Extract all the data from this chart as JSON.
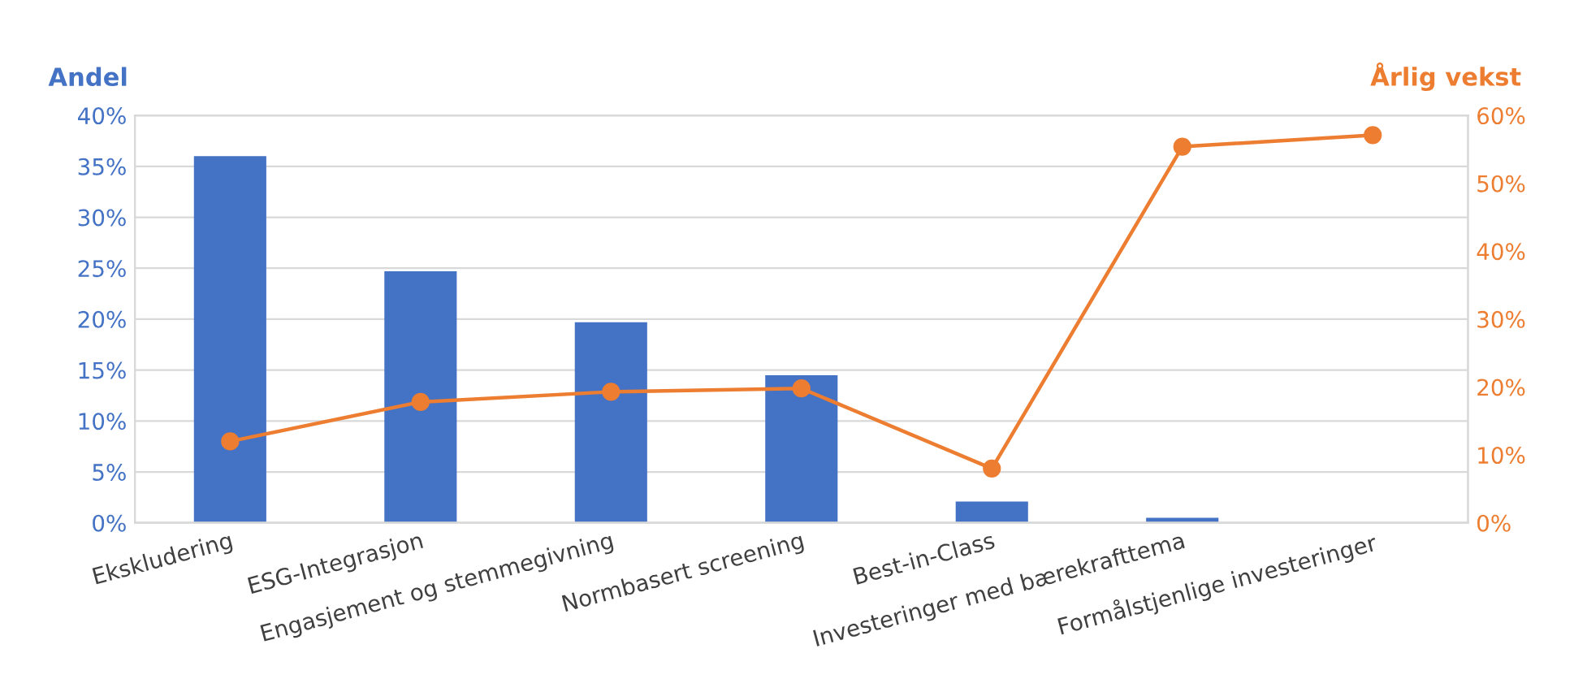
{
  "chart_data": {
    "type": "bar",
    "ylabel": "Andel",
    "y2label": "Årlig vekst",
    "categories": [
      "Ekskludering",
      "ESG-Integrasjon",
      "Engasjement og stemmegivning",
      "Normbasert screening",
      "Best-in-Class",
      "Investeringer med bærekrafttema",
      "Formålstjenlige investeringer"
    ],
    "series": [
      {
        "color": "#4472c4",
        "values": [
          0.36,
          0.247,
          0.197,
          0.145,
          0.021,
          0.005,
          0.0
        ]
      },
      {
        "type": "line",
        "axis": "y2",
        "color": "#ed7d31",
        "marker": "circle",
        "values": [
          0.12,
          0.178,
          0.193,
          0.198,
          0.08,
          0.554,
          0.571
        ]
      }
    ],
    "ylim": [
      0,
      0.4
    ],
    "yticks": [
      {
        "value": 0,
        "label": "0%"
      },
      {
        "value": 0.05,
        "label": "5%"
      },
      {
        "value": 0.1,
        "label": "10%"
      },
      {
        "value": 0.15,
        "label": "15%"
      },
      {
        "value": 0.2,
        "label": "20%"
      },
      {
        "value": 0.25,
        "label": "25%"
      },
      {
        "value": 0.3,
        "label": "30%"
      },
      {
        "value": 0.35,
        "label": "35%"
      },
      {
        "value": 0.4,
        "label": "40%"
      }
    ],
    "y2lim": [
      0,
      0.6
    ],
    "y2ticks": [
      {
        "value": 0,
        "label": "0%"
      },
      {
        "value": 0.1,
        "label": "10%"
      },
      {
        "value": 0.2,
        "label": "20%"
      },
      {
        "value": 0.3,
        "label": "30%"
      },
      {
        "value": 0.4,
        "label": "40%"
      },
      {
        "value": 0.5,
        "label": "50%"
      },
      {
        "value": 0.6,
        "label": "60%"
      }
    ],
    "grid": "y"
  }
}
